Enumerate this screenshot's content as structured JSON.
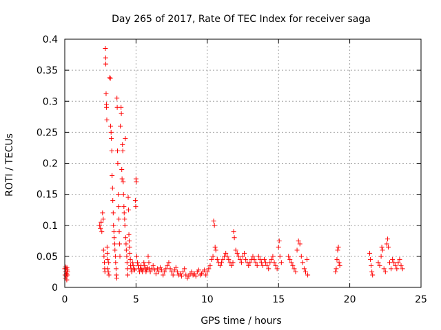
{
  "chart_data": {
    "type": "scatter",
    "title": "Day 265 of 2017, Rate Of TEC Index for receiver saga",
    "xlabel": "GPS time / hours",
    "ylabel": "ROTI / TECUs",
    "xlim": [
      0,
      25
    ],
    "ylim": [
      0,
      0.4
    ],
    "xticks": [
      0,
      5,
      10,
      15,
      20,
      25
    ],
    "xtick_labels": [
      "0",
      "5",
      "10",
      "15",
      "20",
      "25"
    ],
    "yticks": [
      0,
      0.05,
      0.1,
      0.15,
      0.2,
      0.25,
      0.3,
      0.35,
      0.4
    ],
    "ytick_labels": [
      "0",
      "0.05",
      "0.1",
      "0.15",
      "0.2",
      "0.25",
      "0.3",
      "0.35",
      "0.4"
    ],
    "grid": true,
    "marker": "+",
    "marker_color": "#ff0000",
    "series": [
      {
        "name": "ROTI",
        "points": [
          [
            0.0,
            0.03
          ],
          [
            0.02,
            0.02
          ],
          [
            0.04,
            0.015
          ],
          [
            0.06,
            0.025
          ],
          [
            0.08,
            0.03
          ],
          [
            0.1,
            0.018
          ],
          [
            0.12,
            0.022
          ],
          [
            0.14,
            0.012
          ],
          [
            0.16,
            0.028
          ],
          [
            0.18,
            0.02
          ],
          [
            0.2,
            0.025
          ],
          [
            0.05,
            0.033
          ],
          [
            0.15,
            0.032
          ],
          [
            2.45,
            0.1
          ],
          [
            2.5,
            0.095
          ],
          [
            2.55,
            0.105
          ],
          [
            2.6,
            0.09
          ],
          [
            2.65,
            0.12
          ],
          [
            2.7,
            0.11
          ],
          [
            2.72,
            0.06
          ],
          [
            2.75,
            0.05
          ],
          [
            2.78,
            0.04
          ],
          [
            2.8,
            0.03
          ],
          [
            2.82,
            0.025
          ],
          [
            2.85,
            0.385
          ],
          [
            2.87,
            0.37
          ],
          [
            2.88,
            0.36
          ],
          [
            2.9,
            0.312
          ],
          [
            2.92,
            0.295
          ],
          [
            2.93,
            0.29
          ],
          [
            2.95,
            0.27
          ],
          [
            2.97,
            0.065
          ],
          [
            2.98,
            0.055
          ],
          [
            3.0,
            0.045
          ],
          [
            3.02,
            0.03
          ],
          [
            3.05,
            0.025
          ],
          [
            3.08,
            0.04
          ],
          [
            3.1,
            0.02
          ],
          [
            3.15,
            0.338
          ],
          [
            3.2,
            0.337
          ],
          [
            3.22,
            0.26
          ],
          [
            3.25,
            0.25
          ],
          [
            3.27,
            0.24
          ],
          [
            3.3,
            0.22
          ],
          [
            3.32,
            0.18
          ],
          [
            3.35,
            0.16
          ],
          [
            3.37,
            0.14
          ],
          [
            3.4,
            0.12
          ],
          [
            3.42,
            0.1
          ],
          [
            3.45,
            0.09
          ],
          [
            3.47,
            0.08
          ],
          [
            3.5,
            0.07
          ],
          [
            3.52,
            0.06
          ],
          [
            3.55,
            0.05
          ],
          [
            3.57,
            0.04
          ],
          [
            3.6,
            0.03
          ],
          [
            3.62,
            0.02
          ],
          [
            3.65,
            0.015
          ],
          [
            3.66,
            0.305
          ],
          [
            3.68,
            0.29
          ],
          [
            3.7,
            0.22
          ],
          [
            3.72,
            0.2
          ],
          [
            3.75,
            0.15
          ],
          [
            3.78,
            0.13
          ],
          [
            3.8,
            0.11
          ],
          [
            3.82,
            0.09
          ],
          [
            3.85,
            0.07
          ],
          [
            3.87,
            0.05
          ],
          [
            3.9,
            0.26
          ],
          [
            3.95,
            0.29
          ],
          [
            3.97,
            0.28
          ],
          [
            4.0,
            0.19
          ],
          [
            4.02,
            0.175
          ],
          [
            4.05,
            0.23
          ],
          [
            4.07,
            0.22
          ],
          [
            4.1,
            0.17
          ],
          [
            4.12,
            0.15
          ],
          [
            4.15,
            0.13
          ],
          [
            4.17,
            0.12
          ],
          [
            4.2,
            0.11
          ],
          [
            4.22,
            0.1
          ],
          [
            4.25,
            0.24
          ],
          [
            4.27,
            0.08
          ],
          [
            4.3,
            0.07
          ],
          [
            4.32,
            0.06
          ],
          [
            4.35,
            0.05
          ],
          [
            4.37,
            0.04
          ],
          [
            4.4,
            0.03
          ],
          [
            4.42,
            0.02
          ],
          [
            4.45,
            0.145
          ],
          [
            4.47,
            0.125
          ],
          [
            4.5,
            0.085
          ],
          [
            4.52,
            0.075
          ],
          [
            4.55,
            0.065
          ],
          [
            4.57,
            0.055
          ],
          [
            4.6,
            0.045
          ],
          [
            4.62,
            0.035
          ],
          [
            4.65,
            0.03
          ],
          [
            4.7,
            0.025
          ],
          [
            4.75,
            0.04
          ],
          [
            4.8,
            0.035
          ],
          [
            4.85,
            0.03
          ],
          [
            4.9,
            0.028
          ],
          [
            4.95,
            0.14
          ],
          [
            4.98,
            0.13
          ],
          [
            5.0,
            0.175
          ],
          [
            5.02,
            0.17
          ],
          [
            5.05,
            0.05
          ],
          [
            5.1,
            0.04
          ],
          [
            5.15,
            0.035
          ],
          [
            5.2,
            0.03
          ],
          [
            5.25,
            0.025
          ],
          [
            5.3,
            0.03
          ],
          [
            5.35,
            0.035
          ],
          [
            5.4,
            0.028
          ],
          [
            5.45,
            0.025
          ],
          [
            5.5,
            0.03
          ],
          [
            5.55,
            0.04
          ],
          [
            5.6,
            0.035
          ],
          [
            5.65,
            0.03
          ],
          [
            5.7,
            0.025
          ],
          [
            5.75,
            0.028
          ],
          [
            5.8,
            0.032
          ],
          [
            5.85,
            0.05
          ],
          [
            5.9,
            0.04
          ],
          [
            5.95,
            0.03
          ],
          [
            6.0,
            0.025
          ],
          [
            6.1,
            0.03
          ],
          [
            6.2,
            0.035
          ],
          [
            6.3,
            0.028
          ],
          [
            6.4,
            0.022
          ],
          [
            6.5,
            0.03
          ],
          [
            6.6,
            0.025
          ],
          [
            6.7,
            0.032
          ],
          [
            6.8,
            0.028
          ],
          [
            6.9,
            0.02
          ],
          [
            7.0,
            0.025
          ],
          [
            7.1,
            0.03
          ],
          [
            7.2,
            0.035
          ],
          [
            7.3,
            0.04
          ],
          [
            7.4,
            0.03
          ],
          [
            7.5,
            0.025
          ],
          [
            7.6,
            0.02
          ],
          [
            7.7,
            0.028
          ],
          [
            7.8,
            0.032
          ],
          [
            7.9,
            0.025
          ],
          [
            8.0,
            0.02
          ],
          [
            8.1,
            0.022
          ],
          [
            8.2,
            0.018
          ],
          [
            8.3,
            0.025
          ],
          [
            8.4,
            0.03
          ],
          [
            8.5,
            0.02
          ],
          [
            8.6,
            0.015
          ],
          [
            8.7,
            0.018
          ],
          [
            8.8,
            0.022
          ],
          [
            8.9,
            0.025
          ],
          [
            9.0,
            0.02
          ],
          [
            9.1,
            0.022
          ],
          [
            9.2,
            0.018
          ],
          [
            9.3,
            0.025
          ],
          [
            9.4,
            0.028
          ],
          [
            9.5,
            0.02
          ],
          [
            9.6,
            0.022
          ],
          [
            9.7,
            0.025
          ],
          [
            9.8,
            0.028
          ],
          [
            9.9,
            0.02
          ],
          [
            10.0,
            0.025
          ],
          [
            10.1,
            0.03
          ],
          [
            10.2,
            0.035
          ],
          [
            10.3,
            0.045
          ],
          [
            10.4,
            0.05
          ],
          [
            10.45,
            0.107
          ],
          [
            10.5,
            0.1
          ],
          [
            10.55,
            0.065
          ],
          [
            10.6,
            0.06
          ],
          [
            10.7,
            0.045
          ],
          [
            10.8,
            0.04
          ],
          [
            10.9,
            0.035
          ],
          [
            11.0,
            0.04
          ],
          [
            11.1,
            0.045
          ],
          [
            11.2,
            0.05
          ],
          [
            11.3,
            0.055
          ],
          [
            11.4,
            0.05
          ],
          [
            11.5,
            0.045
          ],
          [
            11.6,
            0.04
          ],
          [
            11.7,
            0.035
          ],
          [
            11.8,
            0.04
          ],
          [
            11.85,
            0.09
          ],
          [
            11.9,
            0.08
          ],
          [
            12.0,
            0.06
          ],
          [
            12.1,
            0.055
          ],
          [
            12.2,
            0.05
          ],
          [
            12.3,
            0.045
          ],
          [
            12.4,
            0.04
          ],
          [
            12.5,
            0.05
          ],
          [
            12.6,
            0.055
          ],
          [
            12.7,
            0.045
          ],
          [
            12.8,
            0.04
          ],
          [
            12.9,
            0.035
          ],
          [
            13.0,
            0.04
          ],
          [
            13.1,
            0.045
          ],
          [
            13.2,
            0.05
          ],
          [
            13.3,
            0.045
          ],
          [
            13.4,
            0.04
          ],
          [
            13.5,
            0.035
          ],
          [
            13.6,
            0.05
          ],
          [
            13.7,
            0.045
          ],
          [
            13.8,
            0.04
          ],
          [
            13.9,
            0.035
          ],
          [
            14.0,
            0.045
          ],
          [
            14.1,
            0.04
          ],
          [
            14.2,
            0.035
          ],
          [
            14.3,
            0.03
          ],
          [
            14.4,
            0.04
          ],
          [
            14.5,
            0.045
          ],
          [
            14.6,
            0.05
          ],
          [
            14.7,
            0.04
          ],
          [
            14.8,
            0.035
          ],
          [
            14.9,
            0.03
          ],
          [
            15.0,
            0.065
          ],
          [
            15.05,
            0.075
          ],
          [
            15.1,
            0.05
          ],
          [
            15.2,
            0.04
          ],
          [
            15.7,
            0.05
          ],
          [
            15.8,
            0.045
          ],
          [
            15.9,
            0.04
          ],
          [
            16.0,
            0.035
          ],
          [
            16.1,
            0.03
          ],
          [
            16.2,
            0.025
          ],
          [
            16.3,
            0.06
          ],
          [
            16.4,
            0.075
          ],
          [
            16.5,
            0.07
          ],
          [
            16.6,
            0.05
          ],
          [
            16.7,
            0.04
          ],
          [
            16.8,
            0.03
          ],
          [
            16.9,
            0.025
          ],
          [
            17.0,
            0.045
          ],
          [
            17.05,
            0.02
          ],
          [
            19.0,
            0.025
          ],
          [
            19.05,
            0.03
          ],
          [
            19.1,
            0.045
          ],
          [
            19.15,
            0.06
          ],
          [
            19.2,
            0.065
          ],
          [
            19.25,
            0.04
          ],
          [
            19.3,
            0.035
          ],
          [
            21.4,
            0.055
          ],
          [
            21.45,
            0.045
          ],
          [
            21.5,
            0.035
          ],
          [
            21.55,
            0.025
          ],
          [
            21.6,
            0.02
          ],
          [
            22.0,
            0.04
          ],
          [
            22.1,
            0.035
          ],
          [
            22.2,
            0.05
          ],
          [
            22.25,
            0.065
          ],
          [
            22.3,
            0.06
          ],
          [
            22.4,
            0.03
          ],
          [
            22.5,
            0.025
          ],
          [
            22.6,
            0.07
          ],
          [
            22.65,
            0.078
          ],
          [
            22.7,
            0.065
          ],
          [
            22.8,
            0.04
          ],
          [
            22.9,
            0.03
          ],
          [
            23.0,
            0.045
          ],
          [
            23.1,
            0.04
          ],
          [
            23.2,
            0.035
          ],
          [
            23.3,
            0.03
          ],
          [
            23.4,
            0.04
          ],
          [
            23.5,
            0.045
          ],
          [
            23.6,
            0.035
          ],
          [
            23.7,
            0.03
          ]
        ]
      }
    ]
  }
}
